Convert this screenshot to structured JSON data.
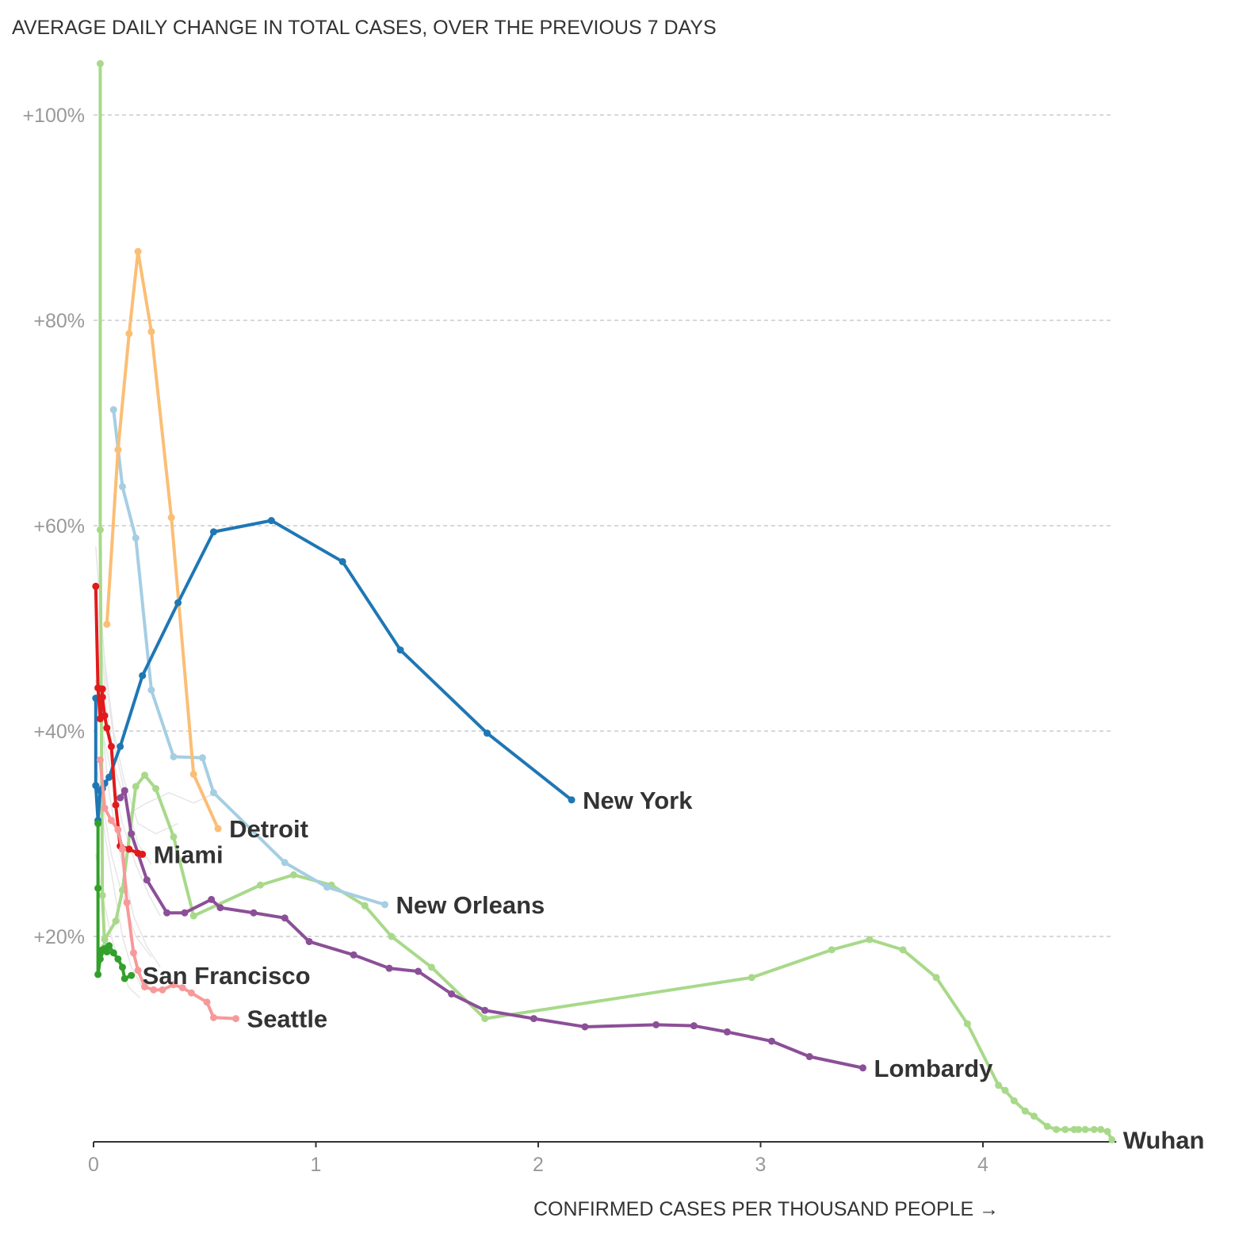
{
  "chart_data": {
    "type": "line",
    "title": "AVERAGE DAILY CHANGE IN TOTAL CASES, OVER THE PREVIOUS 7 DAYS",
    "xlabel": "CONFIRMED CASES PER THOUSAND PEOPLE →",
    "ylabel": "",
    "xlim": [
      0,
      4.6
    ],
    "ylim": [
      0,
      106
    ],
    "x_ticks": [
      0,
      1,
      2,
      3,
      4
    ],
    "x_tick_labels": [
      "0",
      "1",
      "2",
      "3",
      "4"
    ],
    "y_ticks": [
      20,
      40,
      60,
      80,
      100
    ],
    "y_tick_labels": [
      "+20%",
      "+40%",
      "+60%",
      "+80%",
      "+100%"
    ],
    "grid": "horizontal dashed",
    "legend": "direct labels at series end",
    "series": [
      {
        "name": "Wuhan",
        "color": "#a8d98a",
        "x": [
          0.03,
          0.03,
          0.04,
          0.05,
          0.05,
          0.1,
          0.13,
          0.19,
          0.23,
          0.28,
          0.36,
          0.45,
          0.75,
          0.9,
          1.07,
          1.22,
          1.34,
          1.52,
          1.76,
          2.96,
          3.32,
          3.49,
          3.64,
          3.79,
          3.93,
          4.07,
          4.1,
          4.14,
          4.19,
          4.23,
          4.29,
          4.33,
          4.37,
          4.41,
          4.43,
          4.46,
          4.5,
          4.53,
          4.56,
          4.58
        ],
        "y": [
          105,
          59.6,
          24,
          19,
          19.7,
          21.5,
          24.5,
          34.6,
          35.7,
          34.4,
          29.7,
          22,
          25,
          26,
          25,
          23,
          20,
          17,
          12,
          16,
          18.7,
          19.7,
          18.7,
          16,
          11.5,
          5.5,
          5,
          4,
          3,
          2.5,
          1.5,
          1.2,
          1.2,
          1.2,
          1.2,
          1.2,
          1.2,
          1.2,
          1.0,
          0.2
        ]
      },
      {
        "name": "Lombardy",
        "color": "#8b4f97",
        "x": [
          0.12,
          0.14,
          0.17,
          0.24,
          0.33,
          0.41,
          0.53,
          0.57,
          0.72,
          0.86,
          0.97,
          1.17,
          1.33,
          1.46,
          1.61,
          1.76,
          1.98,
          2.21,
          2.53,
          2.7,
          2.85,
          3.05,
          3.22,
          3.46
        ],
        "y": [
          33.5,
          34.2,
          30,
          25.5,
          22.3,
          22.3,
          23.6,
          22.8,
          22.3,
          21.8,
          19.5,
          18.2,
          16.9,
          16.6,
          14.4,
          12.8,
          12,
          11.2,
          11.4,
          11.3,
          10.7,
          9.8,
          8.3,
          7.2
        ]
      },
      {
        "name": "New Orleans",
        "color": "#a5cee3",
        "x": [
          0.09,
          0.13,
          0.19,
          0.26,
          0.36,
          0.49,
          0.54,
          0.86,
          1.05,
          1.31
        ],
        "y": [
          71.3,
          63.8,
          58.8,
          44,
          37.5,
          37.4,
          34,
          27.2,
          24.8,
          23.1
        ]
      },
      {
        "name": "Detroit",
        "color": "#fbbe75",
        "x": [
          0.06,
          0.11,
          0.16,
          0.2,
          0.26,
          0.35,
          0.45,
          0.56
        ],
        "y": [
          50.4,
          67.4,
          78.7,
          86.7,
          78.9,
          60.8,
          35.8,
          30.5
        ]
      },
      {
        "name": "New York",
        "color": "#1f77b4",
        "x": [
          0.01,
          0.01,
          0.02,
          0.03,
          0.04,
          0.05,
          0.07,
          0.12,
          0.22,
          0.38,
          0.54,
          0.8,
          1.12,
          1.38,
          1.77,
          2.15
        ],
        "y": [
          43.2,
          34.7,
          31.3,
          34.2,
          34.4,
          34.9,
          35.5,
          38.5,
          45.4,
          52.5,
          59.4,
          60.5,
          56.5,
          47.9,
          39.8,
          33.3
        ]
      },
      {
        "name": "Miami",
        "color": "#e11a1c",
        "x": [
          0.01,
          0.02,
          0.03,
          0.04,
          0.04,
          0.05,
          0.06,
          0.08,
          0.1,
          0.12,
          0.16,
          0.2,
          0.22
        ],
        "y": [
          54.1,
          44.2,
          41.2,
          44.1,
          43.3,
          41.5,
          40.3,
          38.5,
          32.8,
          28.8,
          28.5,
          28.1,
          28.0
        ]
      },
      {
        "name": "Seattle",
        "color": "#f7999a",
        "x": [
          0.03,
          0.05,
          0.08,
          0.11,
          0.13,
          0.15,
          0.18,
          0.2,
          0.23,
          0.27,
          0.31,
          0.36,
          0.4,
          0.44,
          0.51,
          0.54,
          0.64
        ],
        "y": [
          37.2,
          32.5,
          31.3,
          30.4,
          28.5,
          23.3,
          18.4,
          16.7,
          15.1,
          14.8,
          14.8,
          15.3,
          15.0,
          14.5,
          13.6,
          12.1,
          12.0
        ]
      },
      {
        "name": "San Francisco",
        "color": "#33a02c",
        "x": [
          0.02,
          0.02,
          0.02,
          0.03,
          0.03,
          0.04,
          0.05,
          0.06,
          0.07,
          0.09,
          0.11,
          0.13,
          0.14,
          0.17
        ],
        "y": [
          31,
          24.7,
          16.3,
          17.8,
          18.3,
          18.7,
          18.8,
          18.5,
          19.1,
          18.4,
          17.8,
          17.0,
          15.9,
          16.2
        ]
      }
    ]
  }
}
